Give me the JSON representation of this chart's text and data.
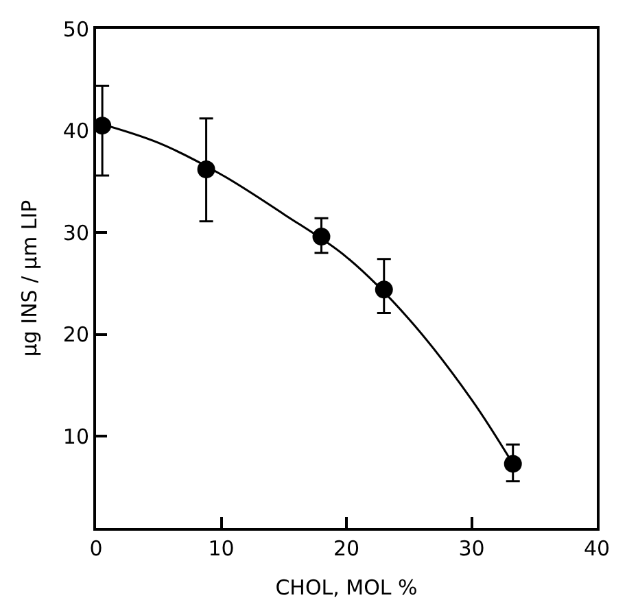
{
  "chart_data": {
    "type": "scatter",
    "xlabel": "CHOL, MOL %",
    "ylabel": "μg INS / μm LIP",
    "xlim": [
      0,
      40
    ],
    "ylim": [
      1,
      50
    ],
    "xticks": [
      0,
      10,
      20,
      30,
      40
    ],
    "yticks": [
      10,
      20,
      30,
      40,
      50
    ],
    "series": [
      {
        "color": "#000000",
        "marker": "circle",
        "x": [
          0.5,
          8.8,
          18,
          23,
          33.3
        ],
        "values": [
          40.5,
          36.2,
          29.6,
          24.4,
          7.3
        ],
        "errors": [
          [
            35.6,
            44.4
          ],
          [
            31.1,
            41.2
          ],
          [
            28.0,
            31.4
          ],
          [
            22.1,
            27.4
          ],
          [
            5.6,
            9.2
          ]
        ]
      },
      {
        "type": "line",
        "color": "#000000",
        "marker": "none",
        "line_style": "solid",
        "x": [
          0,
          5,
          10,
          15,
          20,
          25,
          30,
          33.3
        ],
        "values": [
          40.8,
          38.8,
          35.7,
          31.8,
          27.6,
          21.5,
          13.6,
          7.3
        ]
      }
    ]
  }
}
